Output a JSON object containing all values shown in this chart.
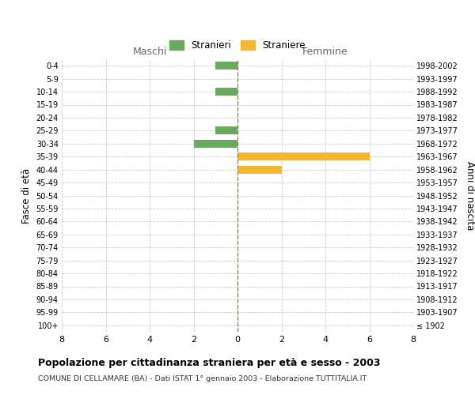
{
  "age_groups": [
    "100+",
    "95-99",
    "90-94",
    "85-89",
    "80-84",
    "75-79",
    "70-74",
    "65-69",
    "60-64",
    "55-59",
    "50-54",
    "45-49",
    "40-44",
    "35-39",
    "30-34",
    "25-29",
    "20-24",
    "15-19",
    "10-14",
    "5-9",
    "0-4"
  ],
  "birth_years": [
    "≤ 1902",
    "1903-1907",
    "1908-1912",
    "1913-1917",
    "1918-1922",
    "1923-1927",
    "1928-1932",
    "1933-1937",
    "1938-1942",
    "1943-1947",
    "1948-1952",
    "1953-1957",
    "1958-1962",
    "1963-1967",
    "1968-1972",
    "1973-1977",
    "1978-1982",
    "1983-1987",
    "1988-1992",
    "1993-1997",
    "1998-2002"
  ],
  "males": [
    0,
    0,
    0,
    0,
    0,
    0,
    0,
    0,
    0,
    0,
    0,
    0,
    0,
    0,
    2,
    1,
    0,
    0,
    1,
    0,
    1
  ],
  "females": [
    0,
    0,
    0,
    0,
    0,
    0,
    0,
    0,
    0,
    0,
    0,
    0,
    2,
    6,
    0,
    0,
    0,
    0,
    0,
    0,
    0
  ],
  "male_color": "#6aaa5f",
  "female_color": "#f5b731",
  "xlim": 8,
  "title": "Popolazione per cittadinanza straniera per età e sesso - 2003",
  "subtitle": "COMUNE DI CELLAMARE (BA) - Dati ISTAT 1° gennaio 2003 - Elaborazione TUTTITALIA.IT",
  "ylabel_left": "Fasce di età",
  "ylabel_right": "Anni di nascita",
  "legend_male": "Stranieri",
  "legend_female": "Straniere",
  "maschi_label": "Maschi",
  "femmine_label": "Femmine",
  "background_color": "#ffffff",
  "grid_color": "#cccccc",
  "center_line_color": "#888866"
}
